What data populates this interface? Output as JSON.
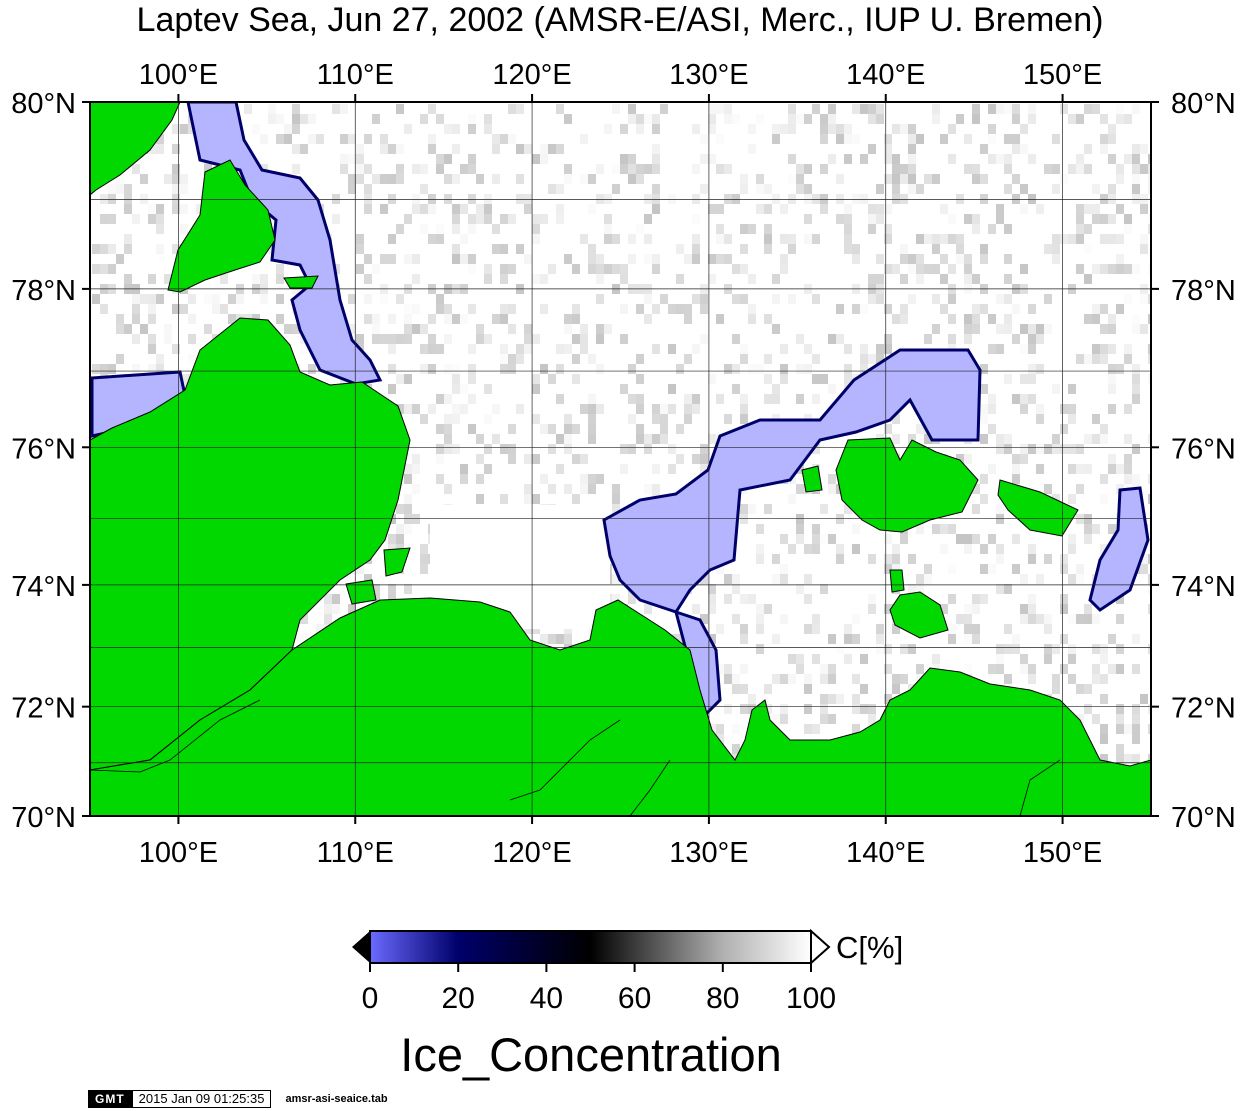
{
  "title": "Laptev Sea, Jun 27, 2002 (AMSR-E/ASI, Merc., IUP U. Bremen)",
  "map": {
    "projection": "Mercator",
    "lon_range": [
      95,
      155
    ],
    "lat_range": [
      70,
      80
    ],
    "lon_ticks": [
      "100°E",
      "110°E",
      "120°E",
      "130°E",
      "140°E",
      "150°E"
    ],
    "lat_ticks": [
      "70°N",
      "72°N",
      "74°N",
      "76°N",
      "78°N",
      "80°N"
    ],
    "land_color": "#00d800",
    "ice_low_color": "#b4b4ff",
    "grid": true
  },
  "colorbar": {
    "ticks": [
      "0",
      "20",
      "40",
      "60",
      "80",
      "100"
    ],
    "unit": "C[%]",
    "variable": "Ice_Concentration",
    "colors": [
      "#6a6aff",
      "#00006a",
      "#000000",
      "#ffffff"
    ]
  },
  "footer": {
    "logo": "GMT",
    "timestamp": "2015 Jan 09 01:25:35",
    "command": "amsr-asi-seaice.tab"
  }
}
